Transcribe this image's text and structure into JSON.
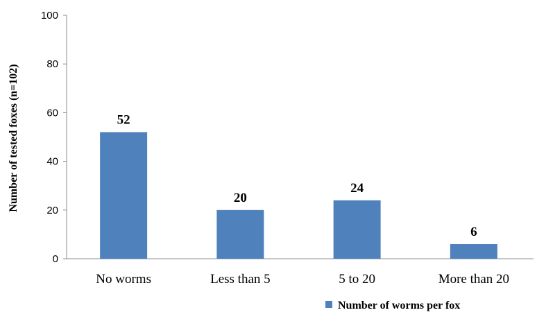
{
  "chart_data": {
    "type": "bar",
    "categories": [
      "No worms",
      "Less than 5",
      "5 to 20",
      "More than 20"
    ],
    "series": [
      {
        "name": "Number of worms per fox",
        "values": [
          52,
          20,
          24,
          6
        ]
      }
    ],
    "data_labels": [
      "52",
      "20",
      "24",
      "6"
    ],
    "ylabel": "Number of tested foxes (n=102)",
    "xlabel": "",
    "ylim": [
      0,
      100
    ],
    "yticks": [
      0,
      20,
      40,
      60,
      80,
      100
    ],
    "grid": false,
    "legend_position": "bottom-right",
    "colors": {
      "bar": "#4F81BD",
      "axis": "#8C8C8C"
    }
  }
}
